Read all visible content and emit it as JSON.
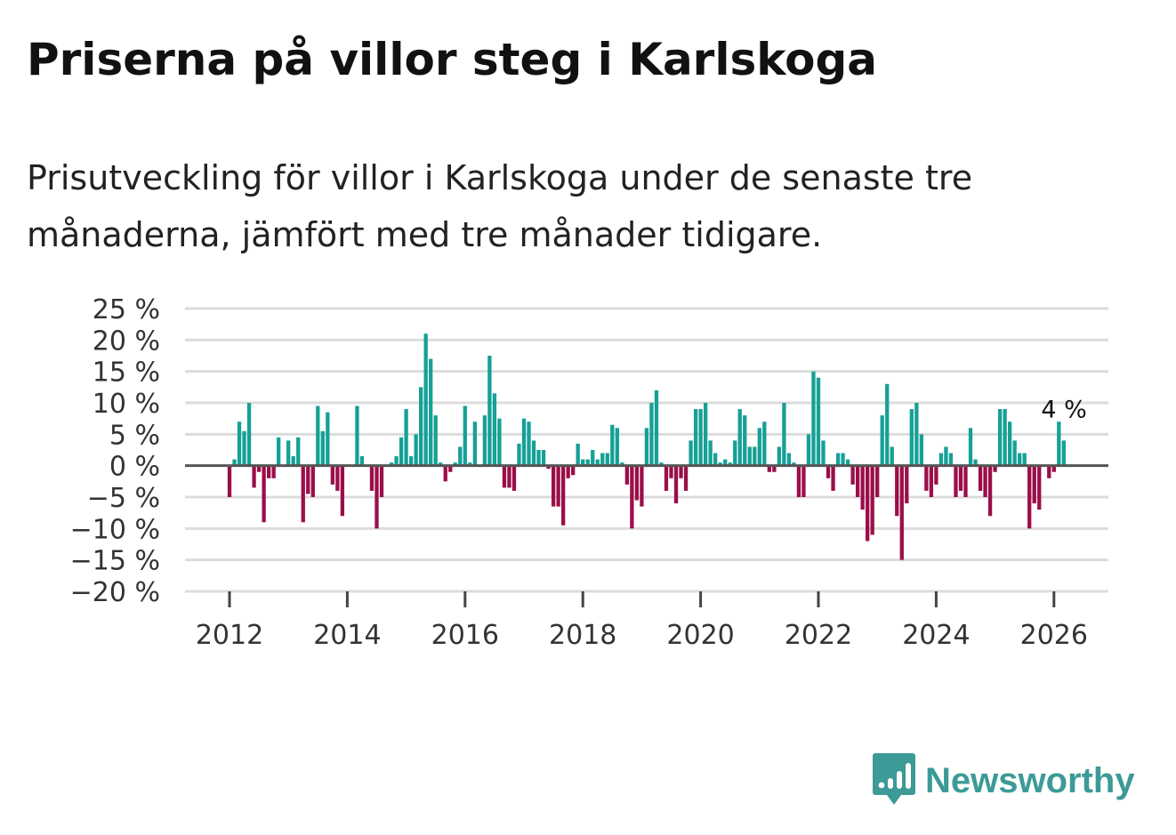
{
  "title": "Priserna på villor steg i Karlskoga",
  "subtitle": "Prisutveckling för villor i Karlskoga under de senaste tre månaderna, jämfört med tre månader tidigare.",
  "brand": {
    "name": "Newsworthy",
    "icon": "newsworthy-logo-icon",
    "color": "#3c9a97"
  },
  "colors": {
    "positive": "#16a096",
    "negative": "#9b0e4a",
    "grid": "#dcdcdc",
    "zero": "#555555"
  },
  "chart_data": {
    "type": "bar",
    "title": "Priserna på villor steg i Karlskoga",
    "xlabel": "",
    "ylabel": "",
    "unit": " %",
    "ylim": [
      -20,
      25
    ],
    "yticks": [
      25,
      20,
      15,
      10,
      5,
      0,
      -5,
      -10,
      -15,
      -20
    ],
    "ytick_labels": [
      "25 %",
      "20 %",
      "15 %",
      "10 %",
      "5 %",
      "0 %",
      "−5 %",
      "−10 %",
      "−15 %",
      "−20 %"
    ],
    "xticks": [
      2012,
      2014,
      2016,
      2018,
      2020,
      2022,
      2024,
      2026
    ],
    "xtick_labels": [
      "2012",
      "2014",
      "2016",
      "2018",
      "2020",
      "2022",
      "2024",
      "2026"
    ],
    "start": {
      "year": 2012,
      "month": 1
    },
    "frequency": "monthly",
    "last_value_label": "4 %",
    "values": [
      -5,
      1,
      7,
      5.5,
      10,
      -3.5,
      -1,
      -9,
      -2,
      -2,
      4.5,
      0,
      4,
      1.5,
      4.5,
      -9,
      -4.5,
      -5,
      9.5,
      5.5,
      8.5,
      -3,
      -4,
      -8,
      0,
      0,
      9.5,
      1.5,
      0,
      -4,
      -10,
      -5,
      0,
      0.5,
      1.5,
      4.5,
      9,
      1.5,
      5,
      12.5,
      21,
      17,
      8,
      0.5,
      -2.5,
      -1,
      0.5,
      3,
      9.5,
      0.5,
      7,
      0,
      8,
      17.5,
      11.5,
      7.5,
      -3.5,
      -3.5,
      -4,
      3.5,
      7.5,
      7,
      4,
      2.5,
      2.5,
      -0.5,
      -6.5,
      -6.5,
      -9.5,
      -2,
      -1.5,
      3.5,
      1,
      1,
      2.5,
      1,
      2,
      2,
      6.5,
      6,
      0.5,
      -3,
      -10,
      -5.5,
      -6.5,
      6,
      10,
      12,
      0.5,
      -4,
      -2,
      -6,
      -2,
      -4,
      4,
      9,
      9,
      10,
      4,
      2,
      0.5,
      1,
      0.5,
      4,
      9,
      8,
      3,
      3,
      6,
      7,
      -1,
      -1,
      3,
      10,
      2,
      0.5,
      -5,
      -5,
      5,
      15,
      14,
      4,
      -2,
      -4,
      2,
      2,
      1,
      -3,
      -5,
      -7,
      -12,
      -11,
      -5,
      8,
      13,
      3,
      -8,
      -15,
      -6,
      9,
      10,
      5,
      -4,
      -5,
      -3,
      2,
      3,
      2,
      -5,
      -4,
      -5,
      6,
      1,
      -4,
      -5,
      -8,
      -1,
      9,
      9,
      7,
      4,
      2,
      2,
      -10,
      -6,
      -7,
      0,
      -2,
      -1,
      7,
      4
    ]
  }
}
